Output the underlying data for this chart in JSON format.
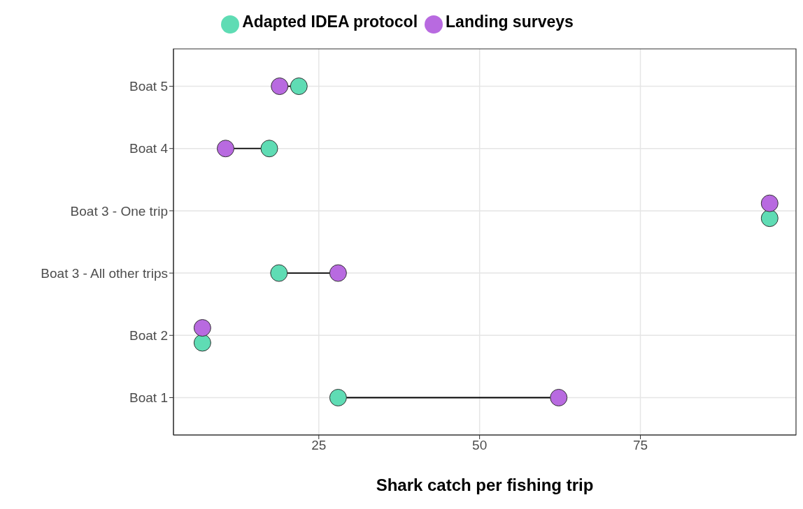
{
  "chart_data": {
    "type": "scatter",
    "xlabel": "Shark catch per fishing trip",
    "categories": [
      "Boat 5",
      "Boat 4",
      "Boat 3 - One trip",
      "Boat 3 - All other trips",
      "Boat 2",
      "Boat 1"
    ],
    "series": [
      {
        "name": "Adapted IDEA protocol",
        "color": "#5fdcb4",
        "values": [
          21.9,
          17.3,
          95.1,
          18.8,
          6.9,
          28.0
        ]
      },
      {
        "name": "Landing surveys",
        "color": "#b86ae0",
        "values": [
          18.9,
          10.5,
          95.1,
          28.0,
          6.9,
          62.3
        ]
      }
    ],
    "orientation": "horizontal",
    "xlim": [
      2.4,
      99.2
    ],
    "xticks": [
      25,
      50,
      75
    ],
    "grid": true,
    "legend": "top",
    "marker": "circle"
  }
}
